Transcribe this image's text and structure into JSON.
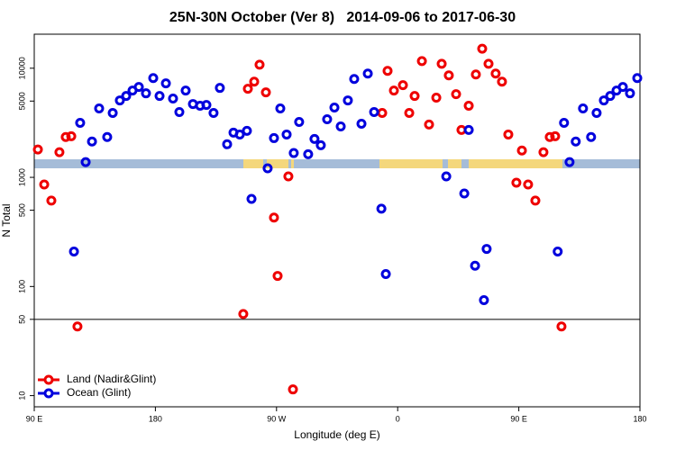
{
  "chart_data": {
    "type": "scatter",
    "title": "25N-30N October (Ver 8)   2014-09-06 to 2017-06-30",
    "xlabel": "Longitude (deg E)",
    "ylabel": "N Total",
    "log_y": true,
    "legend": "bottomleft",
    "hline": 50,
    "xlim": [
      90,
      540
    ],
    "ylim": [
      7.9,
      20500
    ],
    "xticks": [
      {
        "value": 90,
        "label": "90 E"
      },
      180,
      {
        "value": 270,
        "label": "90 W"
      },
      {
        "value": 360,
        "label": "0"
      },
      {
        "value": 450,
        "label": "90 E"
      },
      {
        "value": 540,
        "label": "180"
      }
    ],
    "yticks": [
      10,
      50,
      100,
      500,
      1000,
      5000,
      10000
    ],
    "series": [
      {
        "name": "Land (Nadir&Glint)",
        "color": "#ee0000",
        "x": [
          92.7,
          97.4,
          102.7,
          108.7,
          113.4,
          117.5,
          122.1,
          245.3,
          248.7,
          253.4,
          257.4,
          262.1,
          268.1,
          270.8,
          278.8,
          282.2,
          348.5,
          352.5,
          357.2,
          363.9,
          368.6,
          372.6,
          378,
          383.3,
          388.7,
          392.7,
          398,
          403.4,
          407.4,
          412.8,
          418.1,
          422.8,
          427.5,
          432.8,
          437.5,
          442.2,
          448.2,
          452.3,
          456.9,
          462.3,
          468.3,
          473,
          477,
          481.7
        ],
        "values": [
          1800,
          860,
          612,
          1700,
          2340,
          2380,
          43,
          56,
          6480,
          7530,
          10780,
          6010,
          428,
          125,
          1020,
          11.4,
          3890,
          9450,
          6240,
          6990,
          3890,
          5570,
          11630,
          3050,
          5370,
          10990,
          8600,
          5780,
          2720,
          4530,
          8760,
          15100,
          10990,
          8930,
          7530,
          2470,
          893,
          1760,
          860,
          612,
          1700,
          2340,
          2380,
          43
        ]
      },
      {
        "name": "Ocean (Glint)",
        "color": "#0000dd",
        "x": [
          119.5,
          124.1,
          128.2,
          132.9,
          138.2,
          144.2,
          148.3,
          153.6,
          158.3,
          163,
          167.7,
          173,
          178.4,
          183.1,
          187.8,
          193.1,
          197.8,
          202.5,
          207.9,
          213.2,
          217.9,
          223.2,
          227.9,
          233.3,
          238,
          242.7,
          248,
          251.4,
          263.4,
          268.1,
          272.8,
          277.5,
          282.8,
          286.8,
          293.5,
          298.2,
          302.9,
          307.6,
          313,
          317.7,
          323,
          327.7,
          333.1,
          337.8,
          342.5,
          347.9,
          351.2,
          396.1,
          409.5,
          412.8,
          417.5,
          424.1,
          426.1,
          478.9,
          483.6,
          487.7,
          492.3,
          497.7,
          503.7,
          507.8,
          513.2,
          517.9,
          522.6,
          527.3,
          532.6,
          538
        ],
        "values": [
          209,
          3160,
          1380,
          2130,
          4280,
          2340,
          3890,
          5070,
          5570,
          6240,
          6730,
          5890,
          8120,
          5570,
          7260,
          5270,
          3970,
          6240,
          4700,
          4530,
          4610,
          3890,
          6600,
          2010,
          2570,
          2470,
          2670,
          635,
          1210,
          2290,
          4280,
          2470,
          1670,
          3220,
          1630,
          2250,
          1970,
          3410,
          4360,
          2930,
          5070,
          7970,
          3100,
          8930,
          3970,
          516,
          130,
          1020,
          711,
          2720,
          155,
          75,
          221,
          209,
          3160,
          1380,
          2130,
          4280,
          2340,
          3890,
          5070,
          5570,
          6240,
          6730,
          5890,
          8120
        ]
      }
    ]
  }
}
